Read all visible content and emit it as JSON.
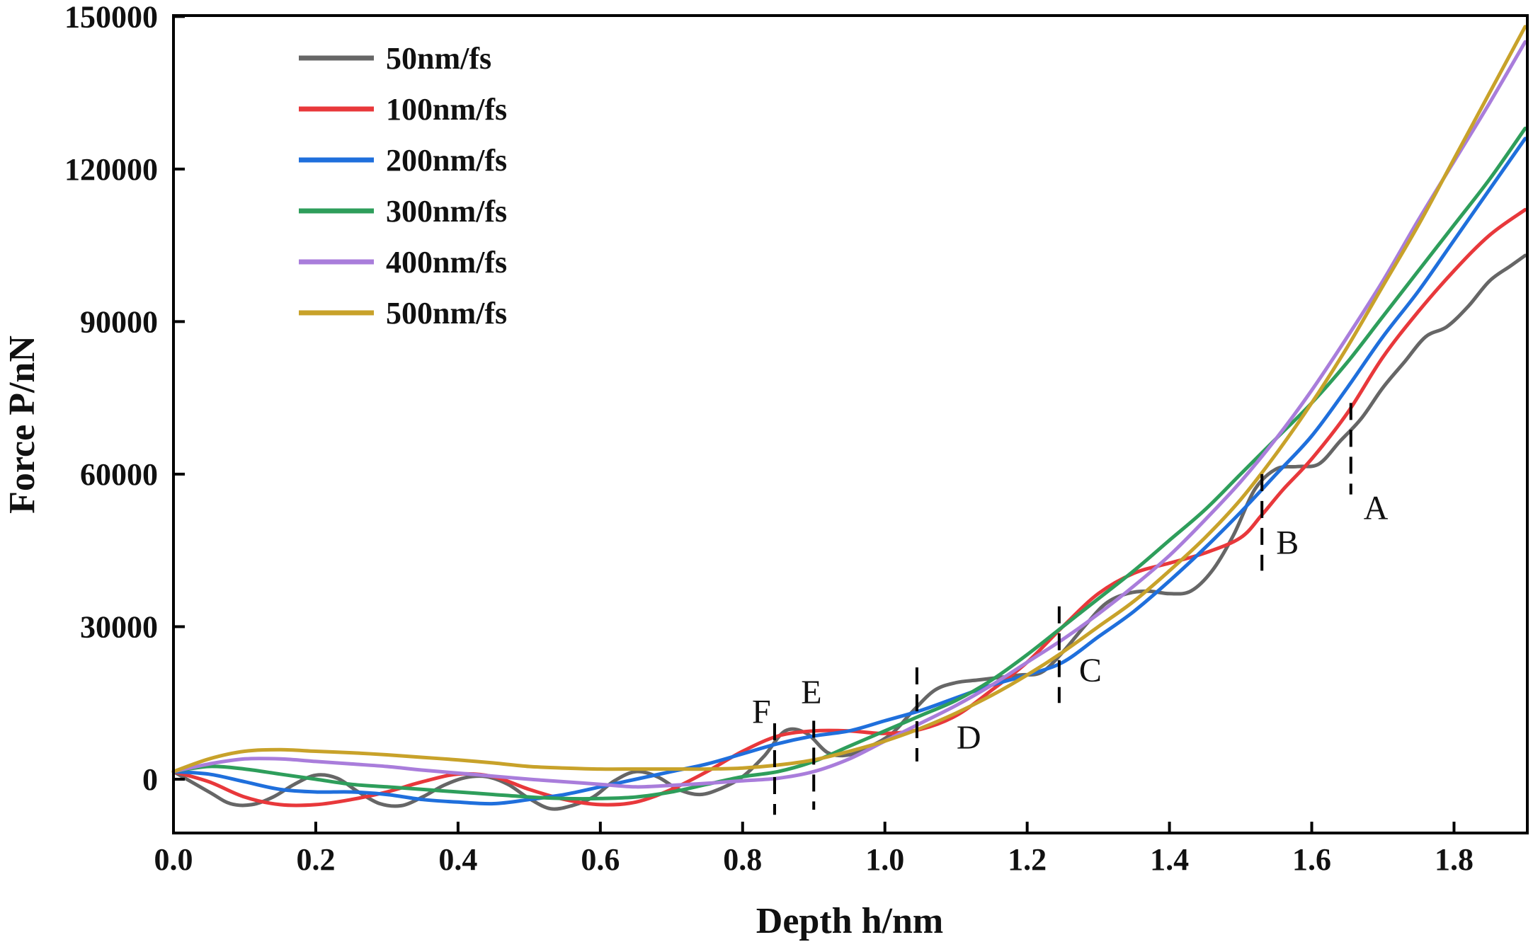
{
  "chart_data": {
    "type": "line",
    "title": "",
    "xlabel": "Depth h/nm",
    "ylabel": "Force  P/nN",
    "xlim": [
      0.0,
      1.9
    ],
    "ylim": [
      -10000,
      150000
    ],
    "xticks": [
      "0.0",
      "0.2",
      "0.4",
      "0.6",
      "0.8",
      "1.0",
      "1.2",
      "1.4",
      "1.6",
      "1.8"
    ],
    "xtick_values": [
      0.0,
      0.2,
      0.4,
      0.6,
      0.8,
      1.0,
      1.2,
      1.4,
      1.6,
      1.8
    ],
    "yticks": [
      "0",
      "30000",
      "60000",
      "90000",
      "120000",
      "150000"
    ],
    "ytick_values": [
      0,
      30000,
      60000,
      90000,
      120000,
      150000
    ],
    "grid": false,
    "legend_position": "top-left",
    "series": [
      {
        "name": "50nm/fs",
        "color": "#666666",
        "x": [
          0,
          0.05,
          0.08,
          0.11,
          0.14,
          0.17,
          0.2,
          0.23,
          0.26,
          0.29,
          0.32,
          0.35,
          0.38,
          0.41,
          0.44,
          0.47,
          0.5,
          0.53,
          0.56,
          0.59,
          0.62,
          0.65,
          0.68,
          0.71,
          0.74,
          0.77,
          0.8,
          0.83,
          0.86,
          0.89,
          0.92,
          0.95,
          0.98,
          1.01,
          1.04,
          1.07,
          1.1,
          1.13,
          1.16,
          1.19,
          1.22,
          1.25,
          1.28,
          1.31,
          1.34,
          1.37,
          1.4,
          1.43,
          1.46,
          1.49,
          1.52,
          1.55,
          1.58,
          1.61,
          1.64,
          1.67,
          1.7,
          1.73,
          1.76,
          1.79,
          1.82,
          1.85,
          1.88,
          1.9
        ],
        "y": [
          1500,
          -2500,
          -4800,
          -5000,
          -3500,
          -1000,
          800,
          200,
          -2500,
          -4800,
          -5200,
          -3500,
          -1200,
          300,
          500,
          -1000,
          -3800,
          -5800,
          -5200,
          -3500,
          -300,
          1500,
          500,
          -2000,
          -3000,
          -1800,
          500,
          4500,
          9500,
          9000,
          5200,
          4800,
          6500,
          9000,
          13500,
          17500,
          19000,
          19500,
          20000,
          20500,
          21000,
          25000,
          30000,
          34500,
          36500,
          37000,
          36500,
          37000,
          41000,
          48000,
          57000,
          61000,
          61500,
          62000,
          66500,
          71000,
          77000,
          82000,
          87000,
          89000,
          93000,
          98000,
          101000,
          103000
        ]
      },
      {
        "name": "100nm/fs",
        "color": "#e8383b",
        "x": [
          0,
          0.05,
          0.1,
          0.15,
          0.2,
          0.25,
          0.3,
          0.35,
          0.4,
          0.45,
          0.5,
          0.55,
          0.6,
          0.65,
          0.7,
          0.75,
          0.8,
          0.85,
          0.9,
          0.95,
          1.0,
          1.05,
          1.1,
          1.15,
          1.2,
          1.25,
          1.3,
          1.35,
          1.4,
          1.45,
          1.5,
          1.53,
          1.56,
          1.6,
          1.65,
          1.7,
          1.75,
          1.8,
          1.85,
          1.9
        ],
        "y": [
          1500,
          -500,
          -3500,
          -5000,
          -5000,
          -4000,
          -2500,
          -500,
          1000,
          500,
          -2000,
          -4000,
          -5000,
          -4500,
          -2000,
          1500,
          5500,
          8500,
          9500,
          9500,
          9000,
          9800,
          12500,
          17500,
          23000,
          30000,
          36500,
          40500,
          42500,
          44500,
          47500,
          52000,
          57000,
          63000,
          72000,
          83000,
          92000,
          100000,
          107000,
          112000
        ]
      },
      {
        "name": "200nm/fs",
        "color": "#1f6fdc",
        "x": [
          0,
          0.05,
          0.1,
          0.15,
          0.2,
          0.25,
          0.3,
          0.35,
          0.4,
          0.45,
          0.5,
          0.55,
          0.6,
          0.65,
          0.7,
          0.75,
          0.8,
          0.85,
          0.9,
          0.95,
          1.0,
          1.05,
          1.1,
          1.15,
          1.2,
          1.25,
          1.3,
          1.35,
          1.4,
          1.45,
          1.5,
          1.55,
          1.6,
          1.65,
          1.7,
          1.75,
          1.8,
          1.85,
          1.9
        ],
        "y": [
          1500,
          1000,
          -500,
          -2000,
          -2500,
          -2500,
          -3000,
          -4000,
          -4500,
          -4800,
          -4000,
          -3000,
          -1500,
          0,
          1500,
          3000,
          5000,
          7000,
          8500,
          9500,
          11500,
          13500,
          16000,
          18500,
          20500,
          23000,
          28000,
          33000,
          39000,
          45500,
          52500,
          60000,
          67500,
          77000,
          87000,
          96000,
          106000,
          116000,
          126000
        ]
      },
      {
        "name": "300nm/fs",
        "color": "#2e9e5b",
        "x": [
          0,
          0.05,
          0.1,
          0.15,
          0.2,
          0.25,
          0.3,
          0.35,
          0.4,
          0.45,
          0.5,
          0.55,
          0.6,
          0.65,
          0.7,
          0.75,
          0.8,
          0.85,
          0.9,
          0.95,
          1.0,
          1.05,
          1.1,
          1.15,
          1.2,
          1.25,
          1.3,
          1.35,
          1.4,
          1.45,
          1.5,
          1.55,
          1.6,
          1.65,
          1.7,
          1.75,
          1.8,
          1.85,
          1.9
        ],
        "y": [
          1500,
          2500,
          2000,
          1000,
          0,
          -1000,
          -1500,
          -2000,
          -2500,
          -3000,
          -3500,
          -3800,
          -3800,
          -3500,
          -2500,
          -1000,
          500,
          1500,
          3500,
          6500,
          9500,
          12500,
          15500,
          19500,
          24500,
          30000,
          35500,
          41000,
          47000,
          53000,
          60000,
          67000,
          74000,
          82000,
          91000,
          100000,
          109000,
          118000,
          128000
        ]
      },
      {
        "name": "400nm/fs",
        "color": "#a97ddb",
        "x": [
          0,
          0.05,
          0.1,
          0.15,
          0.2,
          0.25,
          0.3,
          0.35,
          0.4,
          0.45,
          0.5,
          0.55,
          0.6,
          0.65,
          0.7,
          0.75,
          0.8,
          0.85,
          0.9,
          0.95,
          1.0,
          1.05,
          1.1,
          1.15,
          1.2,
          1.25,
          1.3,
          1.35,
          1.4,
          1.45,
          1.5,
          1.55,
          1.6,
          1.65,
          1.7,
          1.75,
          1.8,
          1.85,
          1.9
        ],
        "y": [
          1500,
          3000,
          4000,
          4000,
          3500,
          3000,
          2500,
          1800,
          1200,
          600,
          0,
          -500,
          -1000,
          -1500,
          -1200,
          -800,
          -300,
          200,
          1500,
          4000,
          7500,
          11000,
          14500,
          18500,
          23000,
          27500,
          32500,
          38000,
          44000,
          51000,
          58500,
          67000,
          76500,
          87000,
          98000,
          110000,
          121500,
          133000,
          145000
        ]
      },
      {
        "name": "500nm/fs",
        "color": "#c8a22a",
        "x": [
          0,
          0.05,
          0.1,
          0.15,
          0.2,
          0.25,
          0.3,
          0.35,
          0.4,
          0.45,
          0.5,
          0.55,
          0.6,
          0.65,
          0.7,
          0.75,
          0.8,
          0.85,
          0.9,
          0.95,
          1.0,
          1.05,
          1.1,
          1.15,
          1.2,
          1.25,
          1.3,
          1.35,
          1.4,
          1.45,
          1.5,
          1.55,
          1.6,
          1.65,
          1.7,
          1.75,
          1.8,
          1.85,
          1.9
        ],
        "y": [
          1500,
          4000,
          5500,
          5800,
          5500,
          5200,
          4800,
          4300,
          3800,
          3200,
          2500,
          2200,
          2000,
          2000,
          2000,
          2000,
          2200,
          2800,
          3800,
          5500,
          7500,
          10000,
          13000,
          16500,
          20500,
          25000,
          30000,
          35000,
          41000,
          47500,
          55000,
          64000,
          74000,
          85000,
          97000,
          109000,
          122000,
          135000,
          148000
        ]
      }
    ],
    "annotations": [
      {
        "label": "A",
        "x": 1.655,
        "y_from": 56000,
        "y_to": 74000
      },
      {
        "label": "B",
        "x": 1.53,
        "y_from": 41000,
        "y_to": 60000
      },
      {
        "label": "C",
        "x": 1.245,
        "y_from": 15000,
        "y_to": 34000
      },
      {
        "label": "D",
        "x": 1.045,
        "y_from": 3500,
        "y_to": 22000
      },
      {
        "label": "E",
        "x": 0.9,
        "y_from": -6000,
        "y_to": 11500
      },
      {
        "label": "F",
        "x": 0.845,
        "y_from": -7000,
        "y_to": 11000
      }
    ]
  }
}
